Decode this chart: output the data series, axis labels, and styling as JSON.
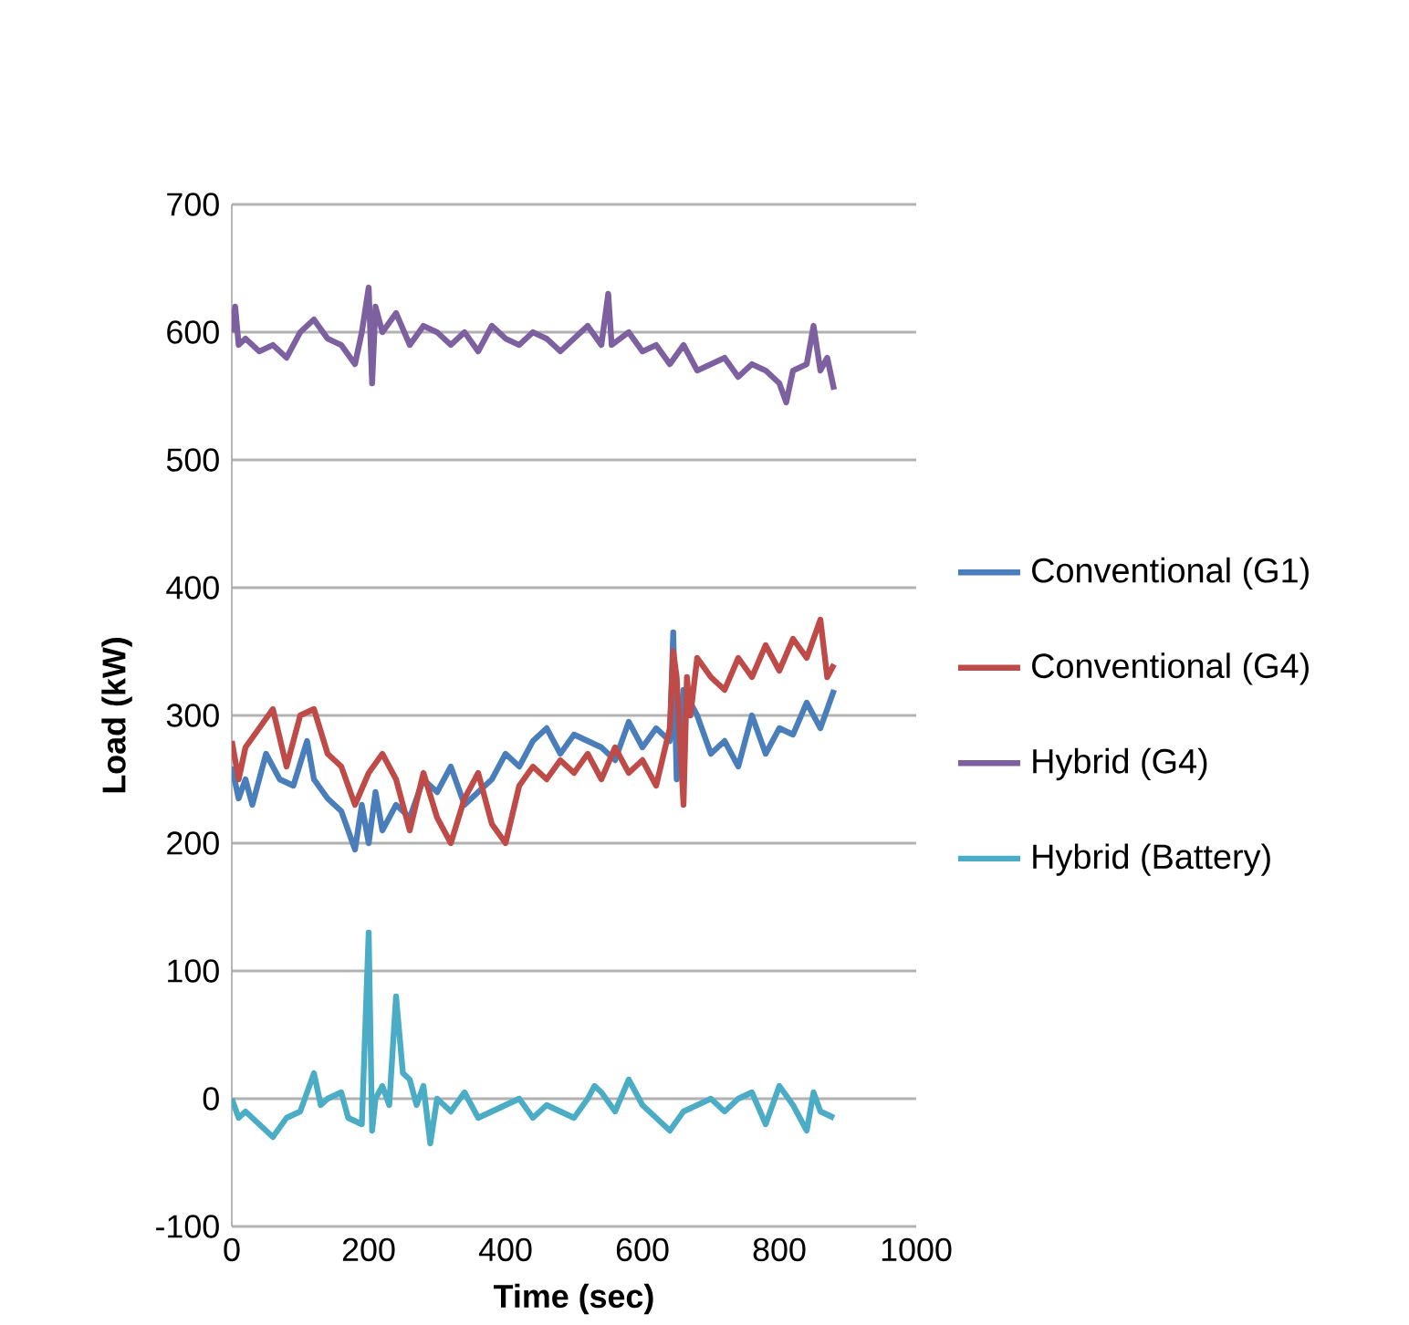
{
  "chart_data": {
    "type": "line",
    "xlabel": "Time (sec)",
    "ylabel": "Load (kW)",
    "xlim": [
      0,
      1000
    ],
    "xticks": [
      0,
      200,
      400,
      600,
      800,
      1000
    ],
    "ylim": [
      -100,
      700
    ],
    "yticks": [
      -100,
      0,
      100,
      200,
      300,
      400,
      500,
      600,
      700
    ],
    "grid": "y",
    "legend": "right",
    "marker": "none",
    "line_style": "solid",
    "series": [
      {
        "name": "Conventional (G1)",
        "color": "#4a7ebb",
        "x": [
          0,
          10,
          20,
          30,
          50,
          70,
          90,
          110,
          120,
          140,
          160,
          170,
          180,
          190,
          200,
          210,
          220,
          240,
          260,
          280,
          300,
          320,
          340,
          360,
          380,
          400,
          420,
          440,
          460,
          480,
          500,
          520,
          540,
          560,
          580,
          600,
          620,
          640,
          645,
          650,
          660,
          680,
          700,
          720,
          740,
          760,
          780,
          800,
          820,
          840,
          860,
          880
        ],
        "values": [
          260,
          235,
          250,
          230,
          270,
          250,
          245,
          280,
          250,
          235,
          225,
          210,
          195,
          230,
          200,
          240,
          210,
          230,
          220,
          250,
          240,
          260,
          230,
          240,
          250,
          270,
          260,
          280,
          290,
          270,
          285,
          280,
          275,
          265,
          295,
          275,
          290,
          280,
          365,
          250,
          320,
          300,
          270,
          280,
          260,
          300,
          270,
          290,
          285,
          310,
          290,
          320
        ]
      },
      {
        "name": "Conventional (G4)",
        "color": "#be4b48",
        "x": [
          0,
          10,
          20,
          40,
          60,
          80,
          100,
          120,
          140,
          160,
          180,
          200,
          220,
          240,
          260,
          280,
          300,
          320,
          340,
          360,
          380,
          400,
          420,
          440,
          460,
          480,
          500,
          520,
          540,
          560,
          580,
          600,
          620,
          640,
          645,
          650,
          660,
          665,
          670,
          680,
          700,
          720,
          740,
          760,
          780,
          800,
          820,
          840,
          860,
          870,
          880
        ],
        "values": [
          280,
          250,
          275,
          290,
          305,
          260,
          300,
          305,
          270,
          260,
          230,
          255,
          270,
          250,
          210,
          255,
          220,
          200,
          235,
          255,
          215,
          200,
          245,
          260,
          250,
          265,
          255,
          270,
          250,
          275,
          255,
          265,
          245,
          290,
          350,
          330,
          230,
          330,
          300,
          345,
          330,
          320,
          345,
          330,
          355,
          335,
          360,
          345,
          375,
          330,
          340
        ]
      },
      {
        "name": "Hybrid (G4)",
        "color": "#7d60a0",
        "x": [
          0,
          5,
          10,
          20,
          40,
          60,
          80,
          100,
          120,
          140,
          160,
          180,
          190,
          200,
          205,
          210,
          220,
          240,
          260,
          280,
          300,
          320,
          340,
          360,
          380,
          400,
          420,
          440,
          460,
          480,
          500,
          520,
          540,
          550,
          555,
          580,
          600,
          620,
          640,
          660,
          680,
          700,
          720,
          740,
          760,
          780,
          800,
          810,
          820,
          840,
          850,
          860,
          870,
          880
        ],
        "values": [
          600,
          620,
          590,
          595,
          585,
          590,
          580,
          600,
          610,
          595,
          590,
          575,
          600,
          635,
          560,
          620,
          600,
          615,
          590,
          605,
          600,
          590,
          600,
          585,
          605,
          595,
          590,
          600,
          595,
          585,
          595,
          605,
          590,
          630,
          590,
          600,
          585,
          590,
          575,
          590,
          570,
          575,
          580,
          565,
          575,
          570,
          560,
          545,
          570,
          575,
          605,
          570,
          580,
          555
        ]
      },
      {
        "name": "Hybrid (Battery)",
        "color": "#4bacc6",
        "x": [
          0,
          10,
          20,
          40,
          60,
          80,
          100,
          120,
          130,
          140,
          160,
          170,
          190,
          200,
          205,
          210,
          220,
          230,
          240,
          250,
          260,
          270,
          280,
          290,
          300,
          320,
          340,
          360,
          380,
          400,
          420,
          440,
          460,
          480,
          500,
          520,
          530,
          540,
          560,
          580,
          600,
          620,
          640,
          660,
          680,
          700,
          720,
          740,
          760,
          780,
          800,
          820,
          840,
          850,
          860,
          880
        ],
        "values": [
          0,
          -15,
          -10,
          -20,
          -30,
          -15,
          -10,
          20,
          -5,
          0,
          5,
          -15,
          -20,
          130,
          -25,
          0,
          10,
          -5,
          80,
          20,
          15,
          -5,
          10,
          -35,
          0,
          -10,
          5,
          -15,
          -10,
          -5,
          0,
          -15,
          -5,
          -10,
          -15,
          0,
          10,
          5,
          -10,
          15,
          -5,
          -15,
          -25,
          -10,
          -5,
          0,
          -10,
          0,
          5,
          -20,
          10,
          -5,
          -25,
          5,
          -10,
          -15
        ]
      }
    ]
  }
}
